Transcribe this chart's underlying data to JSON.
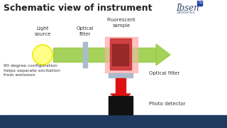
{
  "title": "Schematic view of instrument",
  "bg_color": "#ffffff",
  "bottom_bar_color": "#1e3a5f",
  "title_fontsize": 9,
  "title_fontweight": "bold",
  "title_color": "#222222",
  "label_light_source": "Light\nsource",
  "label_optical_filter1": "Optical\nfilter",
  "label_fluorescent_sample": "Fluorescent\nsample",
  "label_optical_filter2": "Optical filter",
  "label_photo_detector": "Photo detector",
  "label_90deg": "90 degree configuration\nhelps separate excitation\nfrom emission",
  "ibsen_text": "Ibsen",
  "ibsen_subtext": "photonics",
  "sun_color": "#ffff88",
  "sun_outline": "#eeee00",
  "green_arrow_color": "#99cc44",
  "red_arrow_color": "#dd1111",
  "filter1_color": "#aabbcc",
  "sample_pink_color": "#ffbbbb",
  "sample_red_color": "#cc3333",
  "sample_dark_color": "#882222",
  "bottom_filter_color": "#aabbcc",
  "photo_detector_color": "#111111"
}
